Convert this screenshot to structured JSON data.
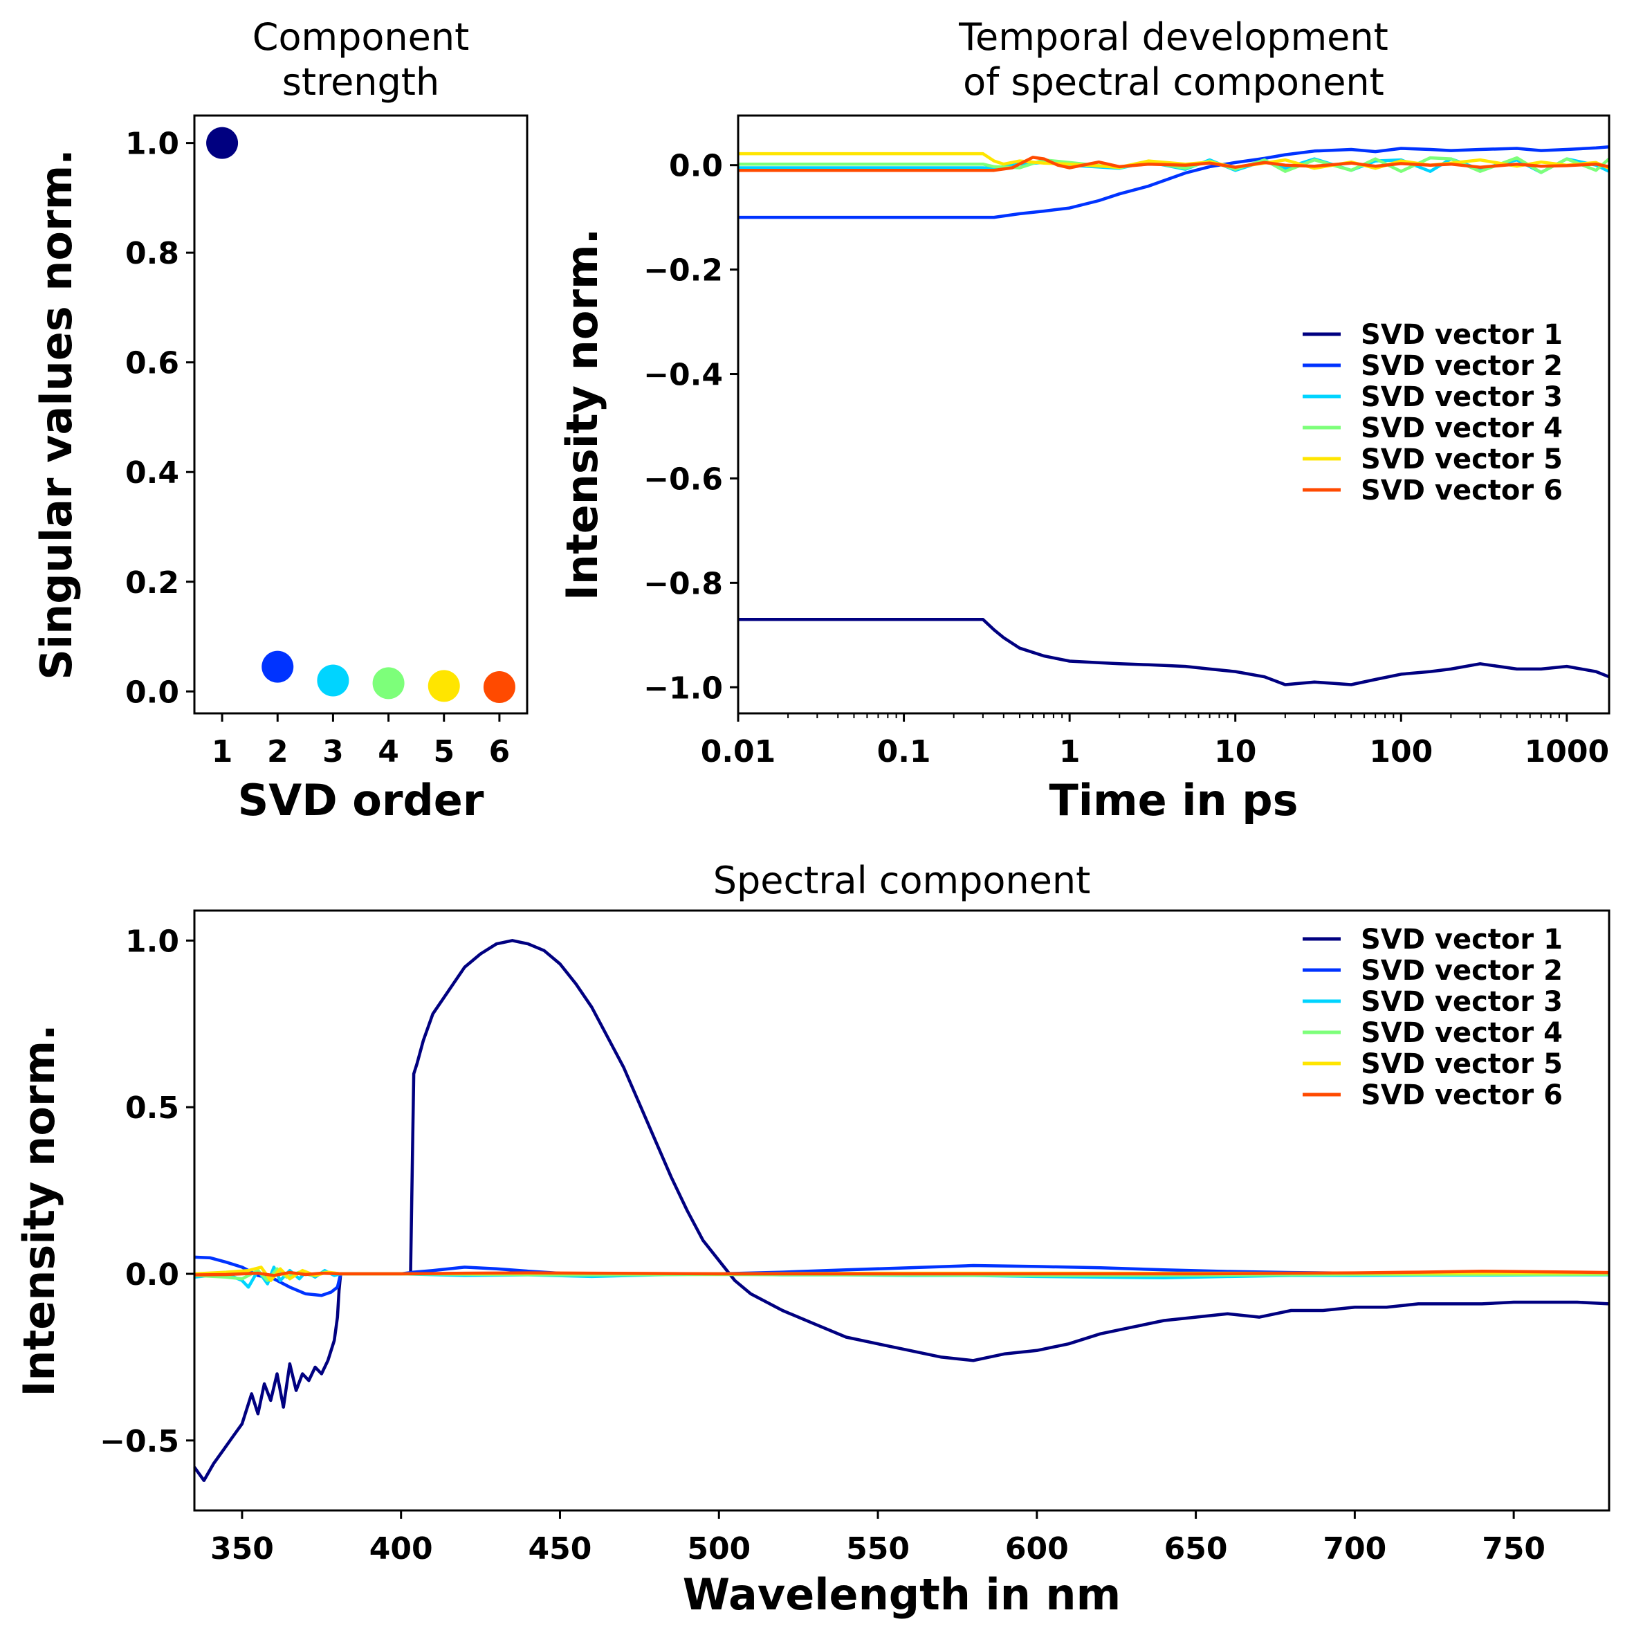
{
  "chart_data": [
    {
      "id": "strength",
      "type": "scatter",
      "title": [
        "Component",
        "strength"
      ],
      "xlabel": "SVD order",
      "ylabel": "Singular values norm.",
      "xlim": [
        0.5,
        6.5
      ],
      "ylim": [
        -0.04,
        1.05
      ],
      "xticks": [
        1,
        2,
        3,
        4,
        5,
        6
      ],
      "yticks": [
        0.0,
        0.2,
        0.4,
        0.6,
        0.8,
        1.0
      ],
      "ytick_labels": [
        "0.0",
        "0.2",
        "0.4",
        "0.6",
        "0.8",
        "1.0"
      ],
      "x": [
        1,
        2,
        3,
        4,
        5,
        6
      ],
      "y": [
        1.0,
        0.045,
        0.02,
        0.015,
        0.01,
        0.008
      ],
      "colors": [
        "#000080",
        "#0033ff",
        "#00d4ff",
        "#7dff7a",
        "#ffe500",
        "#ff4a00"
      ]
    },
    {
      "id": "temporal",
      "type": "line",
      "title": [
        "Temporal development",
        "of spectral component"
      ],
      "xlabel": "Time in ps",
      "ylabel": "Intensity norm.",
      "xscale": "log",
      "xlim": [
        0.01,
        1800
      ],
      "ylim": [
        -1.05,
        0.095
      ],
      "xticks": [
        0.01,
        0.1,
        1,
        10,
        100,
        1000
      ],
      "xtick_labels": [
        "0.01",
        "0.1",
        "1",
        "10",
        "100",
        "1000"
      ],
      "yticks": [
        -1.0,
        -0.8,
        -0.6,
        -0.4,
        -0.2,
        0.0
      ],
      "ytick_labels": [
        "−1.0",
        "−0.8",
        "−0.6",
        "−0.4",
        "−0.2",
        "0.0"
      ],
      "legend": "center-right",
      "series": [
        {
          "name": "SVD vector 1",
          "color": "#000080",
          "x": [
            0.01,
            0.3,
            0.35,
            0.4,
            0.5,
            0.7,
            1,
            1.5,
            2,
            3,
            5,
            7,
            10,
            15,
            20,
            30,
            50,
            70,
            100,
            150,
            200,
            300,
            500,
            700,
            1000,
            1500,
            1800
          ],
          "y": [
            -0.87,
            -0.87,
            -0.89,
            -0.905,
            -0.925,
            -0.94,
            -0.95,
            -0.953,
            -0.955,
            -0.957,
            -0.96,
            -0.965,
            -0.97,
            -0.98,
            -0.995,
            -0.99,
            -0.995,
            -0.985,
            -0.975,
            -0.97,
            -0.965,
            -0.955,
            -0.965,
            -0.965,
            -0.96,
            -0.97,
            -0.98
          ]
        },
        {
          "name": "SVD vector 2",
          "color": "#0033ff",
          "x": [
            0.01,
            0.3,
            0.35,
            0.5,
            0.7,
            1,
            1.5,
            2,
            3,
            5,
            7,
            10,
            15,
            20,
            30,
            50,
            70,
            100,
            150,
            200,
            300,
            500,
            700,
            1000,
            1500,
            1800
          ],
          "y": [
            -0.1,
            -0.1,
            -0.1,
            -0.093,
            -0.088,
            -0.082,
            -0.068,
            -0.055,
            -0.04,
            -0.015,
            -0.003,
            0.005,
            0.013,
            0.02,
            0.027,
            0.03,
            0.026,
            0.032,
            0.03,
            0.028,
            0.03,
            0.032,
            0.028,
            0.03,
            0.033,
            0.035
          ]
        },
        {
          "name": "SVD vector 3",
          "color": "#00d4ff",
          "x": [
            0.01,
            0.3,
            0.35,
            0.5,
            0.7,
            1,
            2,
            3,
            5,
            7,
            10,
            15,
            20,
            30,
            50,
            70,
            100,
            150,
            200,
            300,
            500,
            700,
            1000,
            1500,
            1800
          ],
          "y": [
            -0.005,
            -0.005,
            -0.006,
            0.002,
            0.005,
            0.0,
            -0.006,
            0.006,
            -0.008,
            0.01,
            -0.01,
            0.008,
            -0.006,
            0.012,
            -0.01,
            0.008,
            0.01,
            -0.012,
            0.012,
            -0.008,
            0.01,
            -0.014,
            0.012,
            0.0,
            -0.012
          ]
        },
        {
          "name": "SVD vector 4",
          "color": "#7dff7a",
          "x": [
            0.01,
            0.3,
            0.35,
            0.5,
            0.7,
            1,
            2,
            3,
            5,
            7,
            10,
            15,
            20,
            30,
            50,
            70,
            100,
            150,
            200,
            300,
            500,
            700,
            1000,
            1500,
            1800
          ],
          "y": [
            0.002,
            0.002,
            -0.003,
            -0.005,
            0.01,
            0.005,
            -0.005,
            0.006,
            -0.006,
            0.008,
            -0.008,
            0.01,
            -0.012,
            0.01,
            -0.01,
            0.012,
            -0.012,
            0.014,
            0.012,
            -0.012,
            0.014,
            -0.014,
            0.012,
            -0.01,
            0.012
          ]
        },
        {
          "name": "SVD vector 5",
          "color": "#ffe500",
          "x": [
            0.01,
            0.3,
            0.35,
            0.4,
            0.5,
            0.7,
            1,
            2,
            3,
            5,
            7,
            10,
            15,
            20,
            30,
            50,
            70,
            100,
            150,
            200,
            300,
            500,
            700,
            1000,
            1500,
            1800
          ],
          "y": [
            0.022,
            0.022,
            0.008,
            0.002,
            0.008,
            0.004,
            0.002,
            -0.004,
            0.008,
            0.002,
            0.006,
            -0.004,
            0.004,
            0.01,
            -0.006,
            0.006,
            -0.006,
            0.008,
            0.0,
            0.004,
            0.01,
            -0.002,
            0.006,
            0.0,
            0.005,
            -0.006
          ]
        },
        {
          "name": "SVD vector 6",
          "color": "#ff4a00",
          "x": [
            0.01,
            0.3,
            0.35,
            0.45,
            0.6,
            0.7,
            0.85,
            1,
            1.5,
            2,
            3,
            5,
            7,
            10,
            15,
            20,
            30,
            50,
            70,
            100,
            150,
            200,
            300,
            500,
            700,
            1000,
            1500,
            1800
          ],
          "y": [
            -0.01,
            -0.01,
            -0.01,
            -0.005,
            0.015,
            0.012,
            0.0,
            -0.005,
            0.006,
            -0.003,
            0.002,
            0.0,
            0.004,
            -0.004,
            0.005,
            0.0,
            -0.002,
            0.004,
            -0.002,
            0.003,
            0.0,
            0.002,
            -0.004,
            0.002,
            -0.002,
            -0.001,
            0.002,
            -0.003
          ]
        }
      ]
    },
    {
      "id": "spectral",
      "type": "line",
      "title": "Spectral component",
      "xlabel": "Wavelength in nm",
      "ylabel": "Intensity norm.",
      "xlim": [
        335,
        780
      ],
      "ylim": [
        -0.71,
        1.09
      ],
      "xticks": [
        350,
        400,
        450,
        500,
        550,
        600,
        650,
        700,
        750
      ],
      "xtick_labels": [
        "350",
        "400",
        "450",
        "500",
        "550",
        "600",
        "650",
        "700",
        "750"
      ],
      "yticks": [
        -0.5,
        0.0,
        0.5,
        1.0
      ],
      "ytick_labels": [
        "−0.5",
        "0.0",
        "0.5",
        "1.0"
      ],
      "legend": "upper-right",
      "series": [
        {
          "name": "SVD vector 1",
          "color": "#000080",
          "x": [
            335,
            338,
            341,
            344,
            347,
            350,
            353,
            355,
            357,
            359,
            361,
            363,
            365,
            367,
            369,
            371,
            373,
            375,
            377,
            379,
            380,
            380.5,
            381,
            390,
            400,
            403,
            404,
            405,
            407,
            410,
            415,
            420,
            425,
            430,
            435,
            440,
            445,
            450,
            455,
            460,
            465,
            470,
            475,
            480,
            485,
            490,
            495,
            500,
            505,
            510,
            520,
            530,
            540,
            550,
            560,
            570,
            580,
            585,
            590,
            600,
            610,
            620,
            630,
            640,
            650,
            660,
            670,
            680,
            690,
            700,
            710,
            720,
            730,
            740,
            750,
            760,
            770,
            780
          ],
          "y": [
            -0.58,
            -0.62,
            -0.57,
            -0.53,
            -0.49,
            -0.45,
            -0.36,
            -0.42,
            -0.33,
            -0.38,
            -0.3,
            -0.4,
            -0.27,
            -0.35,
            -0.3,
            -0.32,
            -0.28,
            -0.3,
            -0.26,
            -0.2,
            -0.13,
            -0.05,
            0.0,
            0.0,
            0.0,
            0.0,
            0.6,
            0.63,
            0.7,
            0.78,
            0.85,
            0.92,
            0.96,
            0.99,
            1.0,
            0.99,
            0.97,
            0.93,
            0.87,
            0.8,
            0.71,
            0.62,
            0.51,
            0.4,
            0.29,
            0.19,
            0.1,
            0.04,
            -0.02,
            -0.06,
            -0.11,
            -0.15,
            -0.19,
            -0.21,
            -0.23,
            -0.25,
            -0.26,
            -0.25,
            -0.24,
            -0.23,
            -0.21,
            -0.18,
            -0.16,
            -0.14,
            -0.13,
            -0.12,
            -0.13,
            -0.11,
            -0.11,
            -0.1,
            -0.1,
            -0.09,
            -0.09,
            -0.09,
            -0.085,
            -0.085,
            -0.085,
            -0.09
          ]
        },
        {
          "name": "SVD vector 2",
          "color": "#0033ff",
          "x": [
            335,
            340,
            345,
            350,
            355,
            360,
            365,
            370,
            375,
            378,
            380,
            381,
            390,
            400,
            404,
            410,
            420,
            430,
            440,
            450,
            460,
            480,
            500,
            520,
            540,
            560,
            580,
            600,
            620,
            640,
            660,
            680,
            700,
            720,
            740,
            760,
            780
          ],
          "y": [
            0.05,
            0.048,
            0.035,
            0.02,
            -0.005,
            -0.015,
            -0.04,
            -0.06,
            -0.065,
            -0.055,
            -0.04,
            0.0,
            0.0,
            0.0,
            0.005,
            0.01,
            0.02,
            0.015,
            0.008,
            0.002,
            0.0,
            0.0,
            0.0,
            0.005,
            0.012,
            0.018,
            0.025,
            0.022,
            0.018,
            0.012,
            0.007,
            0.004,
            0.002,
            0.002,
            0.003,
            0.003,
            0.003
          ]
        },
        {
          "name": "SVD vector 3",
          "color": "#00d4ff",
          "x": [
            335,
            340,
            345,
            350,
            352,
            355,
            358,
            360,
            362,
            365,
            368,
            370,
            373,
            376,
            379,
            381,
            400,
            420,
            440,
            460,
            480,
            500,
            520,
            540,
            560,
            580,
            600,
            620,
            640,
            660,
            680,
            700,
            720,
            740,
            760,
            780
          ],
          "y": [
            -0.01,
            -0.005,
            0.0,
            -0.02,
            -0.04,
            0.01,
            -0.03,
            0.02,
            -0.02,
            0.01,
            -0.015,
            0.005,
            -0.01,
            0.01,
            -0.005,
            0.0,
            0.0,
            -0.005,
            -0.003,
            -0.008,
            -0.003,
            0.0,
            -0.003,
            -0.003,
            -0.005,
            -0.005,
            -0.008,
            -0.01,
            -0.012,
            -0.008,
            -0.005,
            -0.005,
            -0.004,
            -0.004,
            -0.003,
            -0.003
          ]
        },
        {
          "name": "SVD vector 4",
          "color": "#7dff7a",
          "x": [
            335,
            345,
            350,
            355,
            358,
            361,
            364,
            368,
            372,
            376,
            381,
            400,
            450,
            500,
            550,
            600,
            650,
            700,
            750,
            780
          ],
          "y": [
            -0.005,
            -0.01,
            -0.015,
            0.01,
            -0.02,
            0.015,
            -0.01,
            0.005,
            -0.005,
            0.005,
            0.0,
            0.0,
            -0.003,
            -0.002,
            -0.003,
            -0.005,
            -0.004,
            -0.002,
            -0.002,
            -0.002
          ]
        },
        {
          "name": "SVD vector 5",
          "color": "#ffe500",
          "x": [
            335,
            345,
            352,
            356,
            359,
            362,
            365,
            369,
            373,
            377,
            381,
            400,
            450,
            500,
            550,
            600,
            650,
            700,
            750,
            780
          ],
          "y": [
            0.0,
            0.005,
            0.01,
            0.02,
            -0.02,
            0.015,
            -0.015,
            0.01,
            -0.005,
            0.005,
            0.0,
            0.0,
            0.002,
            0.0,
            0.002,
            0.002,
            0.002,
            0.002,
            0.003,
            0.003
          ]
        },
        {
          "name": "SVD vector 6",
          "color": "#ff4a00",
          "x": [
            335,
            345,
            355,
            360,
            365,
            370,
            375,
            381,
            400,
            420,
            440,
            460,
            500,
            550,
            600,
            650,
            700,
            720,
            740,
            760,
            780
          ],
          "y": [
            -0.003,
            -0.002,
            0.002,
            -0.005,
            0.004,
            -0.002,
            0.002,
            0.0,
            0.0,
            0.002,
            0.003,
            0.002,
            0.0,
            0.0,
            0.0,
            0.0,
            0.003,
            0.005,
            0.008,
            0.006,
            0.004
          ]
        }
      ]
    }
  ]
}
